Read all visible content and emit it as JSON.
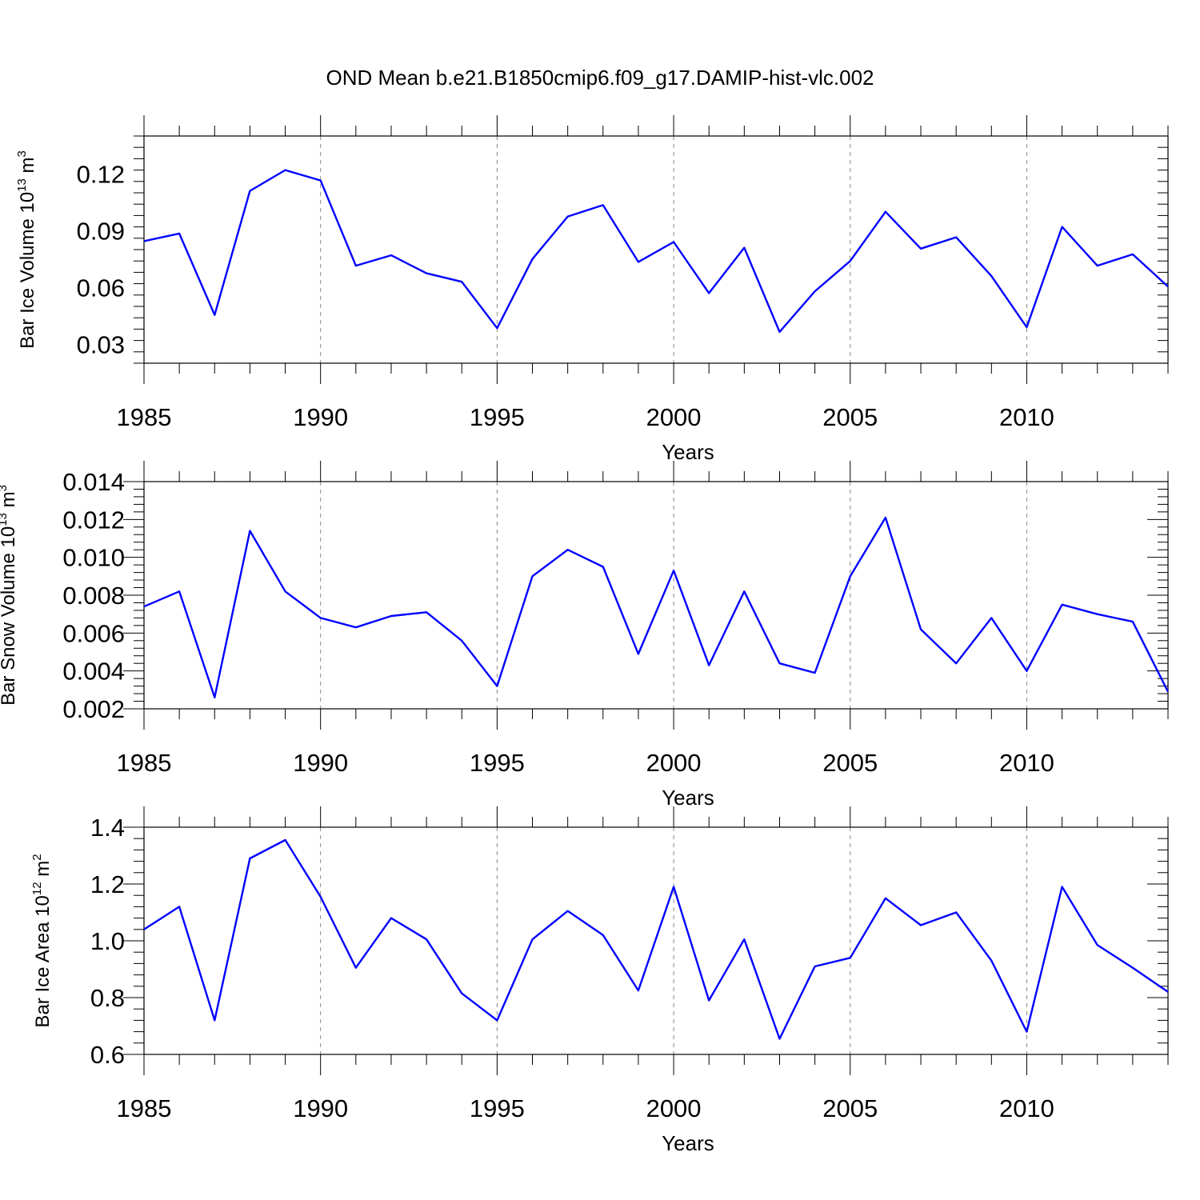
{
  "title": "OND Mean b.e21.B1850cmip6.f09_g17.DAMIP-hist-vlc.002",
  "colors": {
    "line": "#0000ff",
    "frame": "#000000",
    "grid": "#888888"
  },
  "chart_data": [
    {
      "type": "line",
      "ylabel_base": "Bar Ice Volume 10",
      "ylabel_exp": "13",
      "ylabel_unit": " m",
      "ylabel_unit_exp": "3",
      "xlabel": "Years",
      "xlim": [
        1985,
        2014
      ],
      "ylim": [
        0.02,
        0.14
      ],
      "yticks": [
        0.03,
        0.06,
        0.09,
        0.12
      ],
      "ytick_labels": [
        "0.03",
        "0.06",
        "0.09",
        "0.12"
      ],
      "xticks": [
        1985,
        1990,
        1995,
        2000,
        2005,
        2010
      ],
      "xtick_labels": [
        "1985",
        "1990",
        "1995",
        "2000",
        "2005",
        "2010"
      ],
      "x": [
        1985,
        1986,
        1987,
        1988,
        1989,
        1990,
        1991,
        1992,
        1993,
        1994,
        1995,
        1996,
        1997,
        1998,
        1999,
        2000,
        2001,
        2002,
        2003,
        2004,
        2005,
        2006,
        2007,
        2008,
        2009,
        2010,
        2011,
        2012,
        2013,
        2014
      ],
      "values": [
        0.0845,
        0.0885,
        0.0455,
        0.111,
        0.122,
        0.1165,
        0.0715,
        0.077,
        0.0675,
        0.063,
        0.0385,
        0.075,
        0.0975,
        0.1035,
        0.0735,
        0.084,
        0.057,
        0.081,
        0.0365,
        0.058,
        0.074,
        0.1,
        0.0805,
        0.0865,
        0.066,
        0.039,
        0.092,
        0.0715,
        0.0775,
        0.0605
      ]
    },
    {
      "type": "line",
      "ylabel_base": "Bar Snow Volume 10",
      "ylabel_exp": "13",
      "ylabel_unit": " m",
      "ylabel_unit_exp": "3",
      "xlabel": "Years",
      "xlim": [
        1985,
        2014
      ],
      "ylim": [
        0.002,
        0.014
      ],
      "yticks": [
        0.002,
        0.004,
        0.006,
        0.008,
        0.01,
        0.012,
        0.014
      ],
      "ytick_labels": [
        "0.002",
        "0.004",
        "0.006",
        "0.008",
        "0.010",
        "0.012",
        "0.014"
      ],
      "xticks": [
        1985,
        1990,
        1995,
        2000,
        2005,
        2010
      ],
      "xtick_labels": [
        "1985",
        "1990",
        "1995",
        "2000",
        "2005",
        "2010"
      ],
      "x": [
        1985,
        1986,
        1987,
        1988,
        1989,
        1990,
        1991,
        1992,
        1993,
        1994,
        1995,
        1996,
        1997,
        1998,
        1999,
        2000,
        2001,
        2002,
        2003,
        2004,
        2005,
        2006,
        2007,
        2008,
        2009,
        2010,
        2011,
        2012,
        2013,
        2014
      ],
      "values": [
        0.0074,
        0.0082,
        0.0026,
        0.0114,
        0.0082,
        0.0068,
        0.0063,
        0.0069,
        0.0071,
        0.0056,
        0.0032,
        0.009,
        0.0104,
        0.0095,
        0.0049,
        0.0093,
        0.0043,
        0.0082,
        0.0044,
        0.0039,
        0.009,
        0.0121,
        0.0062,
        0.0044,
        0.0068,
        0.004,
        0.0075,
        0.007,
        0.0066,
        0.0029
      ]
    },
    {
      "type": "line",
      "ylabel_base": "Bar Ice Area 10",
      "ylabel_exp": "12",
      "ylabel_unit": " m",
      "ylabel_unit_exp": "2",
      "xlabel": "Years",
      "xlim": [
        1985,
        2014
      ],
      "ylim": [
        0.6,
        1.4
      ],
      "yticks": [
        0.6,
        0.8,
        1.0,
        1.2,
        1.4
      ],
      "ytick_labels": [
        "0.6",
        "0.8",
        "1.0",
        "1.2",
        "1.4"
      ],
      "xticks": [
        1985,
        1990,
        1995,
        2000,
        2005,
        2010
      ],
      "xtick_labels": [
        "1985",
        "1990",
        "1995",
        "2000",
        "2005",
        "2010"
      ],
      "x": [
        1985,
        1986,
        1987,
        1988,
        1989,
        1990,
        1991,
        1992,
        1993,
        1994,
        1995,
        1996,
        1997,
        1998,
        1999,
        2000,
        2001,
        2002,
        2003,
        2004,
        2005,
        2006,
        2007,
        2008,
        2009,
        2010,
        2011,
        2012,
        2013,
        2014
      ],
      "values": [
        1.04,
        1.12,
        0.72,
        1.29,
        1.355,
        1.155,
        0.905,
        1.08,
        1.005,
        0.815,
        0.72,
        1.005,
        1.105,
        1.02,
        0.825,
        1.19,
        0.79,
        1.005,
        0.655,
        0.91,
        0.94,
        1.15,
        1.055,
        1.1,
        0.93,
        0.68,
        1.19,
        0.985,
        0.905,
        0.82
      ]
    }
  ]
}
